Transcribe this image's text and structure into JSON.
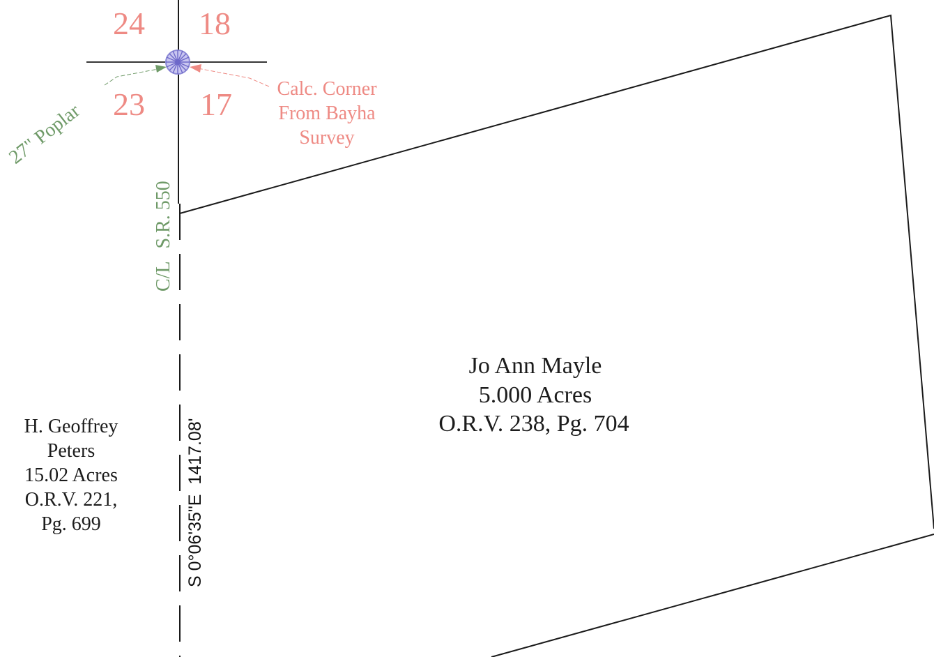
{
  "sections": {
    "top_left": "24",
    "top_right": "18",
    "bottom_left": "23",
    "bottom_right": "17"
  },
  "tree_label": "27\" Poplar",
  "corner_note": {
    "line1": "Calc. Corner",
    "line2": "From Bayha",
    "line3": "Survey"
  },
  "road_label": {
    "part1": "C/L",
    "part2": "S.R. 550"
  },
  "bearing_label": "S 0°06'35\"E  1417.08'",
  "main_parcel": {
    "owner": "Jo Ann Mayle",
    "acres": "5.000 Acres",
    "record": "O.R.V. 238, Pg. 704"
  },
  "adjacent_parcel": {
    "owner_line1": "H. Geoffrey",
    "owner_line2": "Peters",
    "acres": "15.02 Acres",
    "record_line1": "O.R.V. 221,",
    "record_line2": "Pg. 699"
  },
  "colors": {
    "section_numbers": "#ee8a84",
    "green_labels": "#6f9a68",
    "monument": "#8d8ad6",
    "lines": "#1a1a1a"
  }
}
